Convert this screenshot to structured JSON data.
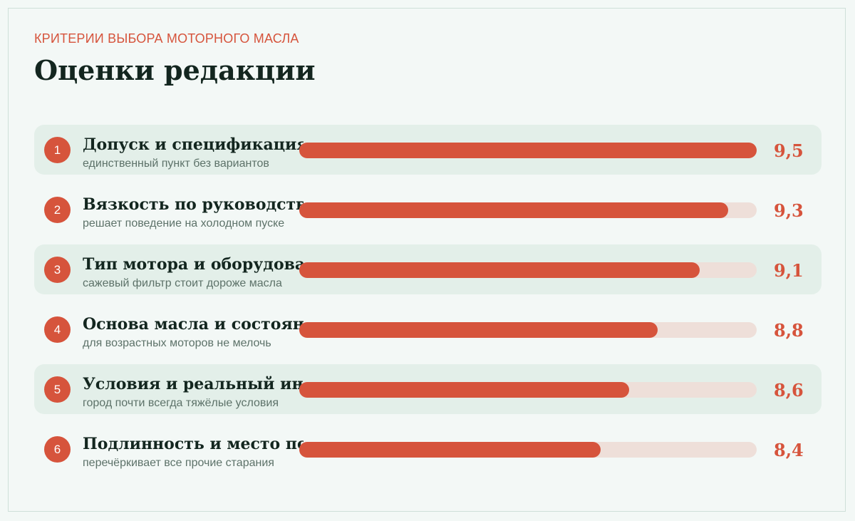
{
  "header": {
    "eyebrow": "КРИТЕРИИ ВЫБОРА МОТОРНОГО МАСЛА",
    "title": "Оценки редакции"
  },
  "colors": {
    "accent": "#d6543c",
    "track": "#eedfd9",
    "row_shade": "#e3efe9",
    "background": "#f3f8f6",
    "title_text": "#13261f"
  },
  "chart_data": {
    "type": "bar",
    "orientation": "horizontal",
    "xlim": [
      0,
      10
    ],
    "categories": [
      "Допуск и спецификация",
      "Вязкость по руководству",
      "Тип мотора и оборудование",
      "Основа масла и состояние",
      "Условия и реальный интервал",
      "Подлинность и место покупки"
    ],
    "values": [
      9.5,
      9.3,
      9.1,
      8.8,
      8.6,
      8.4
    ],
    "data_labels": [
      "9,5",
      "9,3",
      "9,1",
      "8,8",
      "8,6",
      "8,4"
    ],
    "subtitles": [
      "единственный пункт без вариантов",
      "решает поведение на холодном пуске",
      "сажевый фильтр стоит дороже масла",
      "для возрастных моторов не мелочь",
      "город почти всегда тяжёлые условия",
      "перечёркивает все прочие старания"
    ],
    "ranks": [
      "1",
      "2",
      "3",
      "4",
      "5",
      "6"
    ]
  }
}
